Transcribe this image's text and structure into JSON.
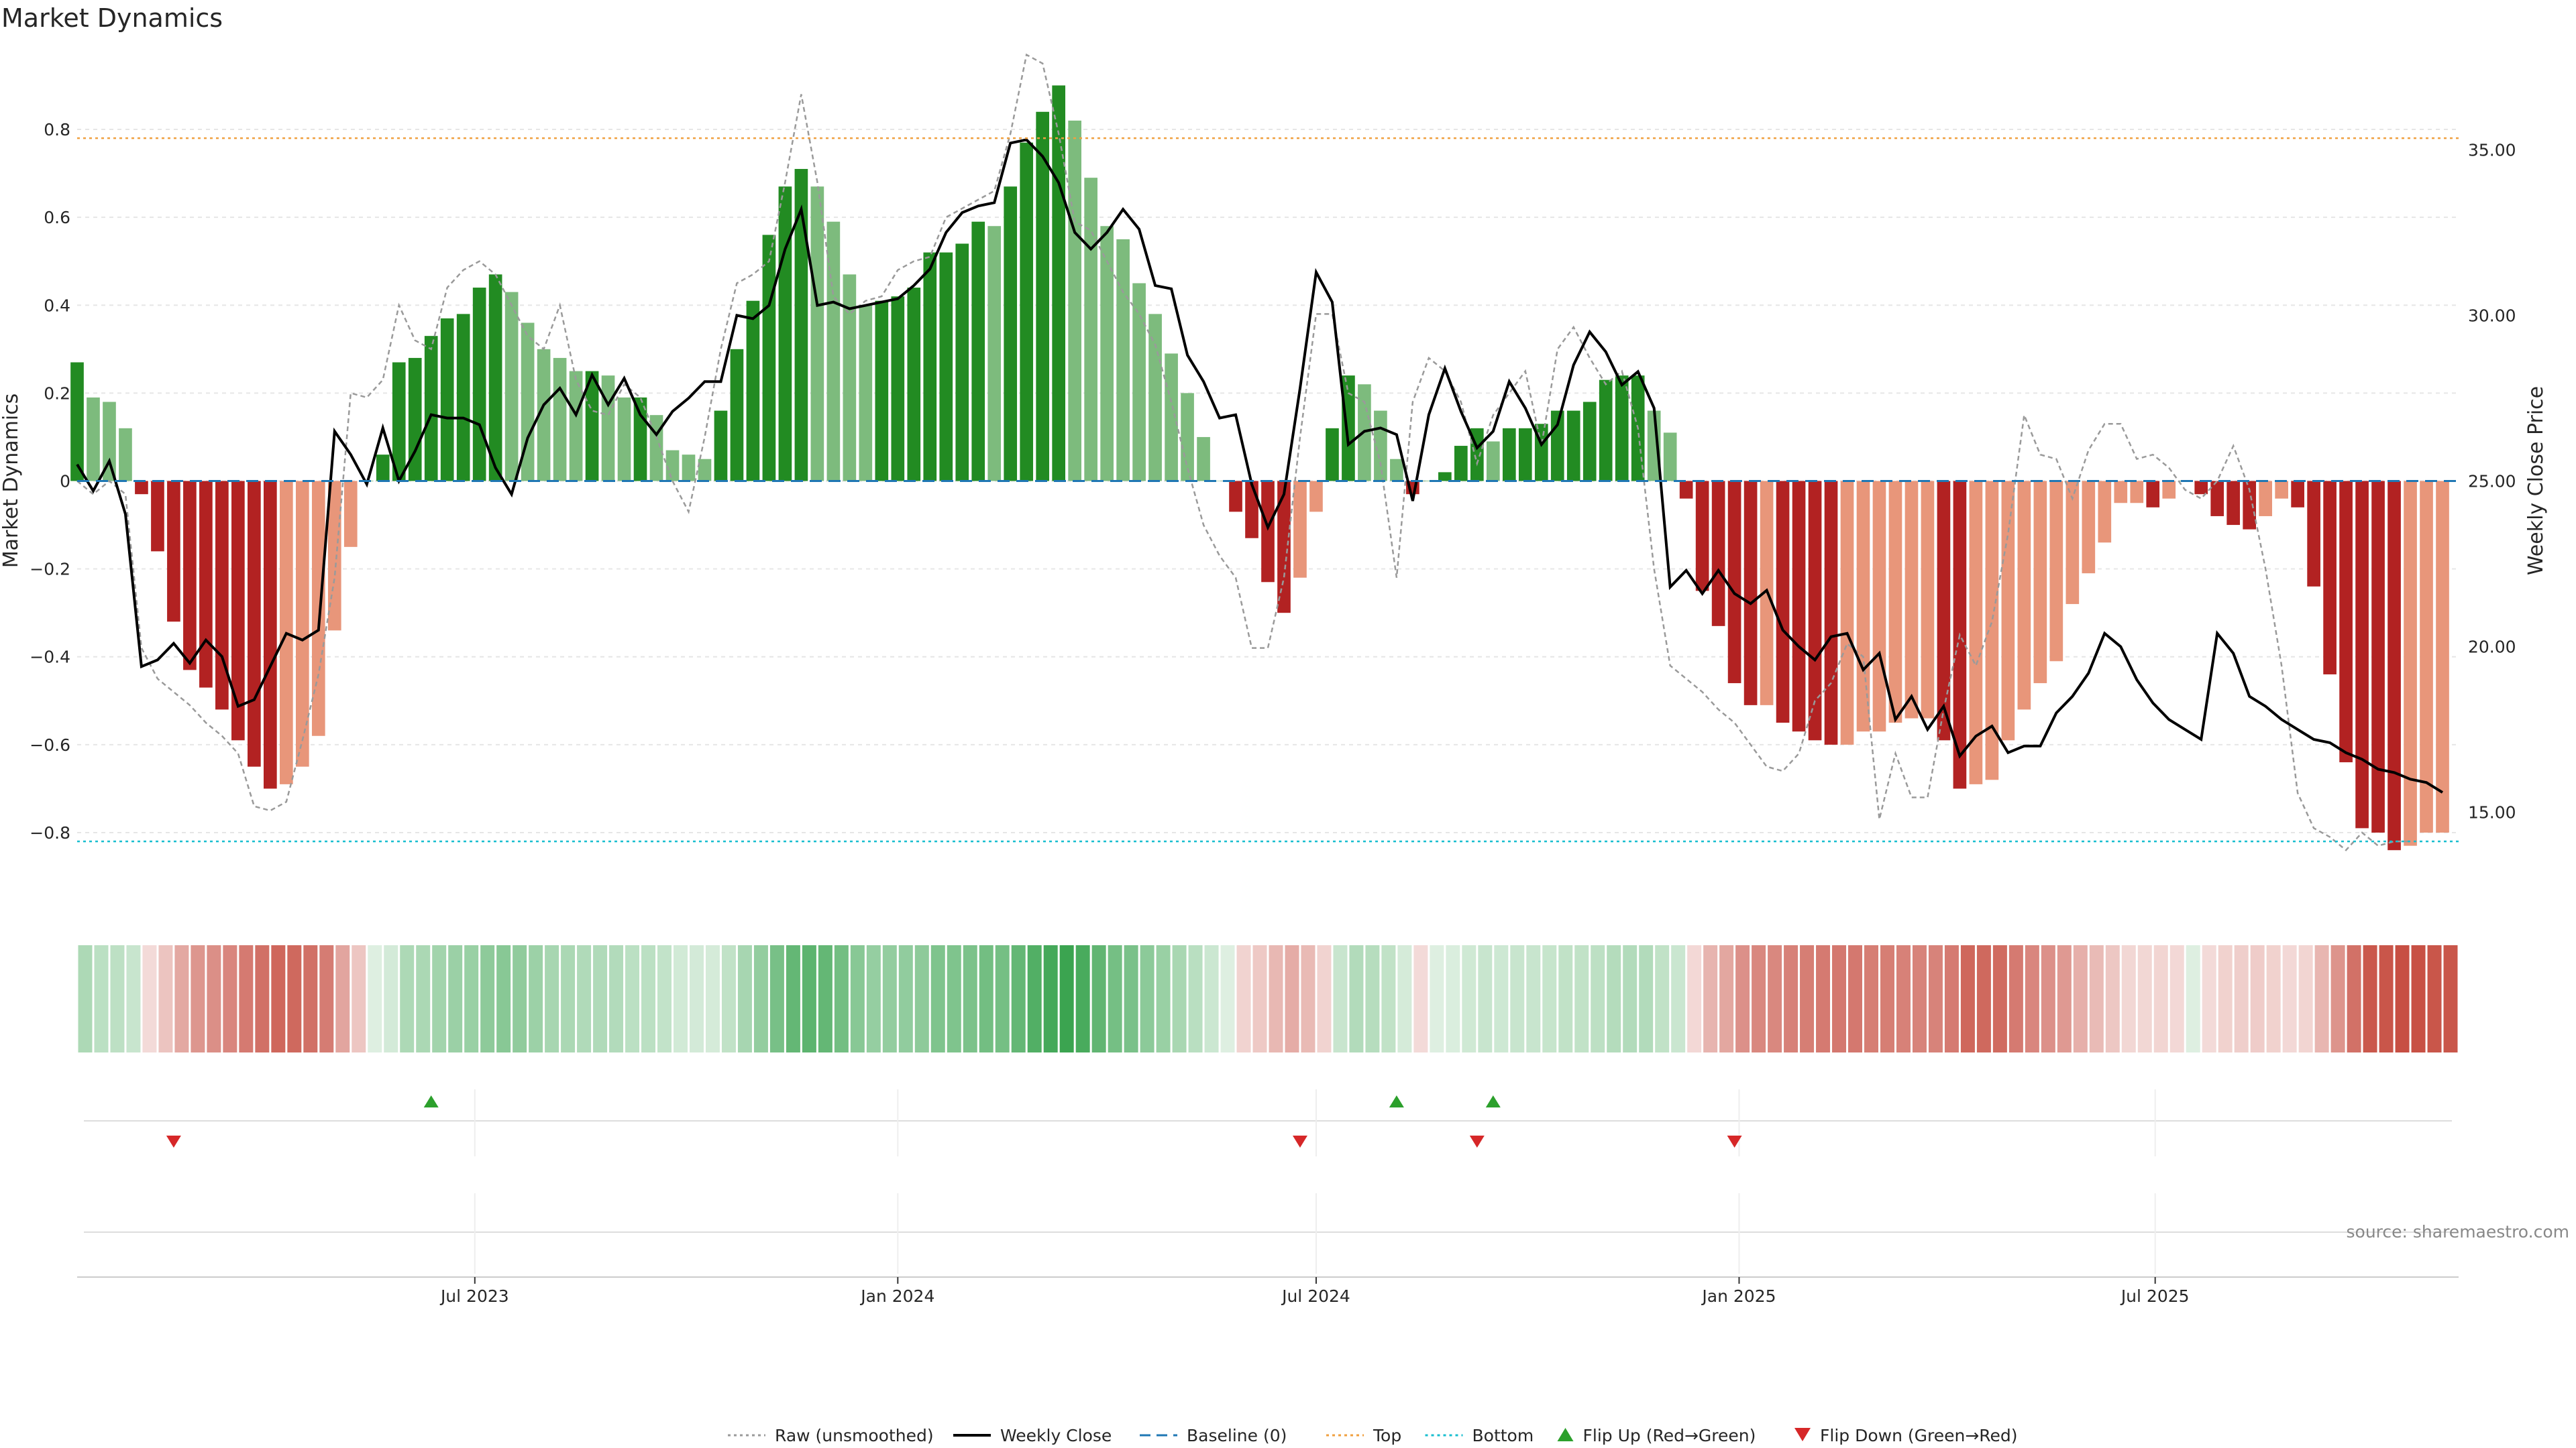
{
  "title": "Market Dynamics",
  "source_note": "source: sharemaestro.com",
  "colors": {
    "strong_green": "#228b22",
    "light_green": "#7dbb7d",
    "strong_red": "#b22222",
    "light_red": "#e8967a",
    "raw": "#9a9a9a",
    "weekly": "#000000",
    "baseline": "#1f77b4",
    "top": "#f0a040",
    "bottom": "#17becf",
    "flip_up": "#2ca02c",
    "flip_down": "#d62728"
  },
  "chart_data": {
    "type": "bar",
    "title": "Market Dynamics",
    "ylabel": "Market Dynamics",
    "y2label": "Weekly Close Price",
    "ylim": [
      -0.98,
      0.98
    ],
    "y2lim": [
      12.0,
      38.0
    ],
    "y_ticks": [
      -0.8,
      -0.6,
      -0.4,
      -0.2,
      0,
      0.2,
      0.4,
      0.6,
      0.8
    ],
    "y_tick_labels": [
      "−0.8",
      "−0.6",
      "−0.4",
      "−0.2",
      "0",
      "0.2",
      "0.4",
      "0.6",
      "0.8"
    ],
    "y2_ticks": [
      15,
      20,
      25,
      30,
      35
    ],
    "y2_tick_labels": [
      "15.00",
      "20.00",
      "25.00",
      "30.00",
      "35.00"
    ],
    "x_range": [
      "2023-01-09",
      "2025-11-10"
    ],
    "x_ticks": [
      {
        "date": "2023-07-01",
        "label": "Jul 2023"
      },
      {
        "date": "2024-01-01",
        "label": "Jan 2024"
      },
      {
        "date": "2024-07-01",
        "label": "Jul 2024"
      },
      {
        "date": "2025-01-01",
        "label": "Jan 2025"
      },
      {
        "date": "2025-07-01",
        "label": "Jul 2025"
      }
    ],
    "start_date": "2023-01-09",
    "week_step_days": 7,
    "top_level": 0.78,
    "bottom_level": -0.82,
    "series": [
      {
        "name": "Market Dynamics",
        "values": [
          0.27,
          0.19,
          0.18,
          0.12,
          -0.03,
          -0.16,
          -0.32,
          -0.43,
          -0.47,
          -0.52,
          -0.59,
          -0.65,
          -0.7,
          -0.69,
          -0.65,
          -0.58,
          -0.34,
          -0.15,
          0.0,
          0.06,
          0.27,
          0.28,
          0.33,
          0.37,
          0.38,
          0.44,
          0.47,
          0.43,
          0.36,
          0.3,
          0.28,
          0.25,
          0.25,
          0.24,
          0.19,
          0.19,
          0.15,
          0.07,
          0.06,
          0.05,
          0.16,
          0.3,
          0.41,
          0.56,
          0.67,
          0.71,
          0.67,
          0.59,
          0.47,
          0.4,
          0.41,
          0.42,
          0.44,
          0.52,
          0.52,
          0.54,
          0.59,
          0.58,
          0.67,
          0.77,
          0.84,
          0.9,
          0.82,
          0.69,
          0.58,
          0.55,
          0.45,
          0.38,
          0.29,
          0.2,
          0.1,
          0.0,
          -0.07,
          -0.13,
          -0.23,
          -0.3,
          -0.22,
          -0.07,
          0.12,
          0.24,
          0.22,
          0.16,
          0.05,
          -0.03,
          0.0,
          0.02,
          0.08,
          0.12,
          0.09,
          0.12,
          0.12,
          0.13,
          0.16,
          0.16,
          0.18,
          0.23,
          0.24,
          0.24,
          0.16,
          0.11,
          -0.04,
          -0.25,
          -0.33,
          -0.46,
          -0.51,
          -0.51,
          -0.55,
          -0.57,
          -0.59,
          -0.6,
          -0.6,
          -0.57,
          -0.57,
          -0.55,
          -0.54,
          -0.54,
          -0.59,
          -0.7,
          -0.69,
          -0.68,
          -0.59,
          -0.52,
          -0.46,
          -0.41,
          -0.28,
          -0.21,
          -0.14,
          -0.05,
          -0.05,
          -0.06,
          -0.04,
          0.0,
          -0.03,
          -0.08,
          -0.1,
          -0.11,
          -0.08,
          -0.04,
          -0.06,
          -0.24,
          -0.44,
          -0.64,
          -0.79,
          -0.8,
          -0.84,
          -0.83,
          -0.8,
          -0.8
        ]
      },
      {
        "name": "Raw (unsmoothed)",
        "values": [
          0.0,
          -0.03,
          0.0,
          -0.03,
          -0.38,
          -0.45,
          -0.48,
          -0.51,
          -0.55,
          -0.58,
          -0.62,
          -0.74,
          -0.75,
          -0.73,
          -0.59,
          -0.44,
          -0.22,
          0.2,
          0.19,
          0.23,
          0.4,
          0.32,
          0.3,
          0.44,
          0.48,
          0.5,
          0.47,
          0.4,
          0.33,
          0.3,
          0.4,
          0.23,
          0.16,
          0.15,
          0.22,
          0.19,
          0.1,
          0.0,
          -0.07,
          0.1,
          0.3,
          0.45,
          0.47,
          0.5,
          0.68,
          0.88,
          0.68,
          0.42,
          0.38,
          0.41,
          0.42,
          0.48,
          0.5,
          0.51,
          0.6,
          0.62,
          0.64,
          0.66,
          0.79,
          0.97,
          0.95,
          0.79,
          0.59,
          0.57,
          0.5,
          0.43,
          0.38,
          0.31,
          0.18,
          0.03,
          -0.1,
          -0.17,
          -0.22,
          -0.38,
          -0.38,
          -0.22,
          0.1,
          0.38,
          0.38,
          0.2,
          0.18,
          0.04,
          -0.22,
          0.18,
          0.28,
          0.25,
          0.18,
          0.04,
          0.15,
          0.2,
          0.25,
          0.08,
          0.3,
          0.35,
          0.28,
          0.22,
          0.25,
          0.12,
          -0.2,
          -0.42,
          -0.45,
          -0.48,
          -0.52,
          -0.55,
          -0.6,
          -0.65,
          -0.66,
          -0.62,
          -0.5,
          -0.46,
          -0.37,
          -0.4,
          -0.77,
          -0.62,
          -0.72,
          -0.72,
          -0.52,
          -0.35,
          -0.42,
          -0.32,
          -0.12,
          0.15,
          0.06,
          0.05,
          -0.04,
          0.07,
          0.13,
          0.13,
          0.05,
          0.06,
          0.03,
          -0.02,
          -0.04,
          0.0,
          0.08,
          -0.02,
          -0.2,
          -0.42,
          -0.71,
          -0.79,
          -0.81,
          -0.84,
          -0.8,
          -0.83,
          -0.82,
          -0.82
        ]
      },
      {
        "name": "Weekly Close",
        "axis": "right",
        "values": [
          25.5,
          24.7,
          25.6,
          24.0,
          19.4,
          19.6,
          20.1,
          19.5,
          20.2,
          19.7,
          18.2,
          18.4,
          19.4,
          20.4,
          20.2,
          20.5,
          26.5,
          25.8,
          24.9,
          26.6,
          25.0,
          25.9,
          27.0,
          26.9,
          26.9,
          26.7,
          25.4,
          24.6,
          26.3,
          27.3,
          27.8,
          27.0,
          28.2,
          27.3,
          28.1,
          27.0,
          26.4,
          27.1,
          27.5,
          28.0,
          28.0,
          30.0,
          29.9,
          30.3,
          32.0,
          33.2,
          30.3,
          30.4,
          30.2,
          30.3,
          30.4,
          30.5,
          30.9,
          31.4,
          32.5,
          33.1,
          33.3,
          33.4,
          35.2,
          35.3,
          34.8,
          34.0,
          32.5,
          32.0,
          32.5,
          33.2,
          32.6,
          30.9,
          30.8,
          28.8,
          28.0,
          26.9,
          27.0,
          24.9,
          23.6,
          24.6,
          27.8,
          31.3,
          30.4,
          26.1,
          26.5,
          26.6,
          26.4,
          24.4,
          27.0,
          28.4,
          27.1,
          26.0,
          26.5,
          28.0,
          27.2,
          26.1,
          26.7,
          28.5,
          29.5,
          28.9,
          27.9,
          28.3,
          27.2,
          21.8,
          22.3,
          21.6,
          22.3,
          21.6,
          21.3,
          21.7,
          20.5,
          20.0,
          19.6,
          20.3,
          20.4,
          19.3,
          19.8,
          17.8,
          18.5,
          17.5,
          18.2,
          16.7,
          17.3,
          17.6,
          16.8,
          17.0,
          17.0,
          18.0,
          18.5,
          19.2,
          20.4,
          20.0,
          19.0,
          18.3,
          17.8,
          17.5,
          17.2,
          20.4,
          19.8,
          18.5,
          18.2,
          17.8,
          17.5,
          17.2,
          17.1,
          16.8,
          16.6,
          16.3,
          16.2,
          16.0,
          15.9,
          15.6
        ]
      }
    ],
    "flip_up_dates": [
      "2023-06-12",
      "2024-08-05",
      "2024-09-16"
    ],
    "flip_down_dates": [
      "2023-02-20",
      "2024-06-24",
      "2024-09-09",
      "2024-12-30"
    ],
    "legend": [
      {
        "label": "Raw (unsmoothed)",
        "kind": "dotted-line",
        "color": "#9a9a9a"
      },
      {
        "label": "Weekly Close",
        "kind": "line",
        "color": "#000000"
      },
      {
        "label": "Baseline (0)",
        "kind": "dashed-line",
        "color": "#1f77b4"
      },
      {
        "label": "Top",
        "kind": "dotted-line",
        "color": "#f0a040"
      },
      {
        "label": "Bottom",
        "kind": "dotted-line",
        "color": "#17becf"
      },
      {
        "label": "Flip Up (Red→Green)",
        "kind": "triangle-up",
        "color": "#2ca02c"
      },
      {
        "label": "Flip Down (Green→Red)",
        "kind": "triangle-down",
        "color": "#d62728"
      }
    ],
    "legend_position": "bottom-center",
    "grid": true
  }
}
